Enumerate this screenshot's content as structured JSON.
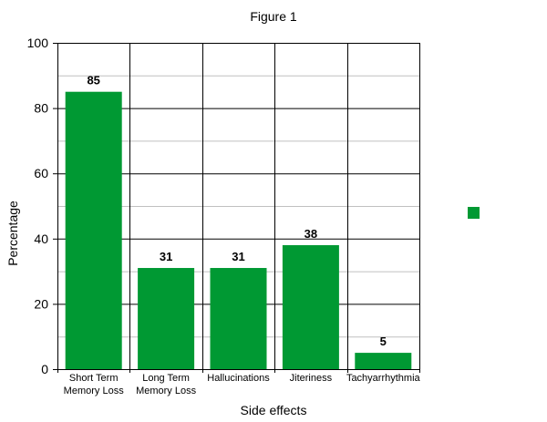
{
  "chart_data": {
    "type": "bar",
    "title": "Figure 1",
    "xlabel": "Side effects",
    "ylabel": "Percentage",
    "categories": [
      [
        "Short Term",
        "Memory Loss"
      ],
      [
        "Long Term",
        "Memory Loss"
      ],
      [
        "Hallucinations"
      ],
      [
        "Jiteriness"
      ],
      [
        "Tachyarrhythmia"
      ]
    ],
    "values": [
      85,
      31,
      31,
      38,
      5
    ],
    "data_labels": [
      "85",
      "31",
      "31",
      "38",
      "5"
    ],
    "ylim": [
      0,
      100
    ],
    "yticks": [
      0,
      20,
      40,
      60,
      80,
      100
    ],
    "minor_step": 10,
    "grid": true,
    "legend_position": "right",
    "bar_color": "#009933"
  }
}
